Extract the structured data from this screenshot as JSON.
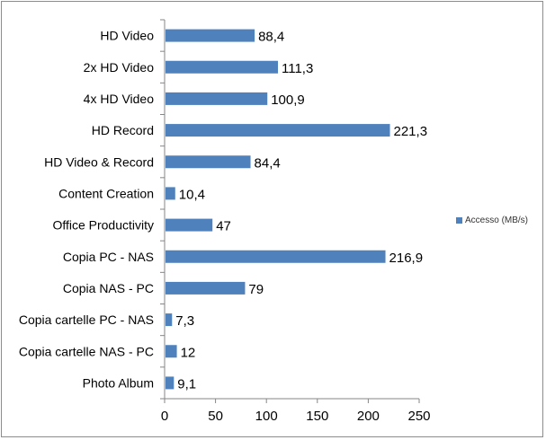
{
  "chart_data": {
    "type": "bar",
    "orientation": "horizontal",
    "categories": [
      "HD Video",
      "2x HD Video",
      "4x HD Video",
      "HD Record",
      "HD Video & Record",
      "Content Creation",
      "Office Productivity",
      "Copia PC - NAS",
      "Copia NAS - PC",
      "Copia cartelle PC - NAS",
      "Copia cartelle NAS - PC",
      "Photo Album"
    ],
    "series": [
      {
        "name": "Accesso (MB/s)",
        "color": "#4f81bd",
        "values": [
          88.4,
          111.3,
          100.9,
          221.3,
          84.4,
          10.4,
          47,
          216.9,
          79,
          7.3,
          12,
          9.1
        ],
        "labels": [
          "88,4",
          "111,3",
          "100,9",
          "221,3",
          "84,4",
          "10,4",
          "47",
          "216,9",
          "79",
          "7,3",
          "12",
          "9,1"
        ]
      }
    ],
    "xlim": [
      0,
      250
    ],
    "xticks": [
      0,
      50,
      100,
      150,
      200,
      250
    ],
    "xlabel": "",
    "ylabel": "",
    "title": "",
    "grid": false,
    "legend_position": "right"
  }
}
